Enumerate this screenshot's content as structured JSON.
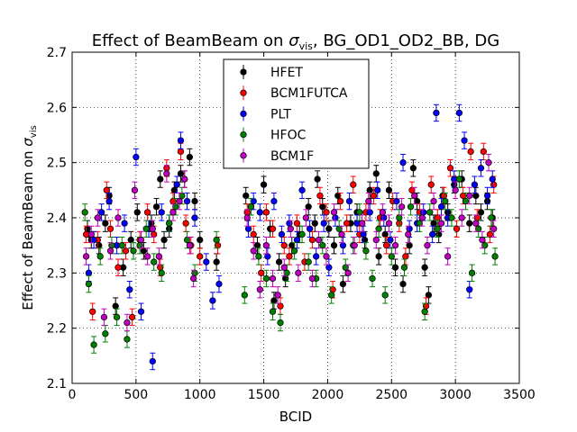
{
  "chart_data": {
    "type": "scatter",
    "title_prefix": "Effect of BeamBeam on ",
    "title_symbol": "σ",
    "title_subscript": "vis",
    "title_suffix": ", BG_OD1_OD2_BB, DG",
    "xlabel": "BCID",
    "ylabel_prefix": "Effect of BeamBeam on ",
    "ylabel_symbol": "σ",
    "ylabel_subscript": "vis",
    "xlim": [
      0,
      3500
    ],
    "ylim": [
      2.1,
      2.7
    ],
    "x_ticks": [
      0,
      500,
      1000,
      1500,
      2000,
      2500,
      3000,
      3500
    ],
    "y_ticks": [
      2.1,
      2.2,
      2.3,
      2.4,
      2.5,
      2.6,
      2.7
    ],
    "x_tick_labels": [
      "0",
      "500",
      "1000",
      "1500",
      "2000",
      "2500",
      "3000",
      "3500"
    ],
    "y_tick_labels": [
      "2.1",
      "2.2",
      "2.3",
      "2.4",
      "2.5",
      "2.6",
      "2.7"
    ],
    "grid": true,
    "legend_position": "top-center",
    "error_bar": 0.015,
    "series": [
      {
        "name": "HFET",
        "color": "#000000",
        "points": [
          [
            120,
            2.38
          ],
          [
            150,
            2.36
          ],
          [
            210,
            2.35
          ],
          [
            260,
            2.39
          ],
          [
            290,
            2.44
          ],
          [
            340,
            2.24
          ],
          [
            400,
            2.31
          ],
          [
            460,
            2.36
          ],
          [
            510,
            2.41
          ],
          [
            560,
            2.34
          ],
          [
            620,
            2.39
          ],
          [
            660,
            2.42
          ],
          [
            690,
            2.47
          ],
          [
            720,
            2.36
          ],
          [
            760,
            2.38
          ],
          [
            800,
            2.45
          ],
          [
            850,
            2.48
          ],
          [
            880,
            2.47
          ],
          [
            920,
            2.51
          ],
          [
            960,
            2.43
          ],
          [
            1000,
            2.36
          ],
          [
            1130,
            2.32
          ],
          [
            1360,
            2.44
          ],
          [
            1400,
            2.42
          ],
          [
            1450,
            2.35
          ],
          [
            1500,
            2.46
          ],
          [
            1550,
            2.38
          ],
          [
            1580,
            2.25
          ],
          [
            1620,
            2.32
          ],
          [
            1670,
            2.29
          ],
          [
            1720,
            2.35
          ],
          [
            1780,
            2.37
          ],
          [
            1850,
            2.42
          ],
          [
            1900,
            2.39
          ],
          [
            1920,
            2.47
          ],
          [
            1960,
            2.42
          ],
          [
            2010,
            2.38
          ],
          [
            2050,
            2.35
          ],
          [
            2080,
            2.44
          ],
          [
            2120,
            2.28
          ],
          [
            2180,
            2.39
          ],
          [
            2230,
            2.41
          ],
          [
            2290,
            2.36
          ],
          [
            2330,
            2.45
          ],
          [
            2380,
            2.48
          ],
          [
            2400,
            2.33
          ],
          [
            2450,
            2.37
          ],
          [
            2480,
            2.45
          ],
          [
            2530,
            2.31
          ],
          [
            2590,
            2.28
          ],
          [
            2640,
            2.35
          ],
          [
            2670,
            2.49
          ],
          [
            2700,
            2.43
          ],
          [
            2760,
            2.31
          ],
          [
            2790,
            2.26
          ],
          [
            2830,
            2.39
          ],
          [
            2870,
            2.37
          ],
          [
            2900,
            2.44
          ],
          [
            2940,
            2.41
          ],
          [
            2990,
            2.46
          ],
          [
            3050,
            2.47
          ],
          [
            3110,
            2.39
          ],
          [
            3160,
            2.44
          ],
          [
            3200,
            2.41
          ],
          [
            3250,
            2.43
          ],
          [
            3290,
            2.4
          ]
        ]
      },
      {
        "name": "BCM1FUTCA",
        "color": "#ff0000",
        "points": [
          [
            110,
            2.37
          ],
          [
            160,
            2.23
          ],
          [
            200,
            2.36
          ],
          [
            270,
            2.45
          ],
          [
            300,
            2.38
          ],
          [
            360,
            2.31
          ],
          [
            420,
            2.34
          ],
          [
            470,
            2.22
          ],
          [
            530,
            2.36
          ],
          [
            590,
            2.41
          ],
          [
            640,
            2.37
          ],
          [
            690,
            2.31
          ],
          [
            740,
            2.49
          ],
          [
            790,
            2.43
          ],
          [
            850,
            2.52
          ],
          [
            890,
            2.39
          ],
          [
            930,
            2.35
          ],
          [
            1000,
            2.33
          ],
          [
            1140,
            2.35
          ],
          [
            1370,
            2.41
          ],
          [
            1420,
            2.37
          ],
          [
            1480,
            2.3
          ],
          [
            1520,
            2.41
          ],
          [
            1570,
            2.38
          ],
          [
            1630,
            2.24
          ],
          [
            1660,
            2.35
          ],
          [
            1700,
            2.33
          ],
          [
            1760,
            2.39
          ],
          [
            1820,
            2.32
          ],
          [
            1880,
            2.36
          ],
          [
            1940,
            2.44
          ],
          [
            1990,
            2.41
          ],
          [
            2040,
            2.27
          ],
          [
            2100,
            2.43
          ],
          [
            2150,
            2.39
          ],
          [
            2200,
            2.46
          ],
          [
            2250,
            2.37
          ],
          [
            2300,
            2.41
          ],
          [
            2360,
            2.44
          ],
          [
            2410,
            2.4
          ],
          [
            2460,
            2.35
          ],
          [
            2510,
            2.43
          ],
          [
            2560,
            2.39
          ],
          [
            2610,
            2.33
          ],
          [
            2660,
            2.45
          ],
          [
            2720,
            2.41
          ],
          [
            2770,
            2.24
          ],
          [
            2810,
            2.46
          ],
          [
            2860,
            2.4
          ],
          [
            2910,
            2.44
          ],
          [
            2960,
            2.49
          ],
          [
            3010,
            2.38
          ],
          [
            3060,
            2.44
          ],
          [
            3120,
            2.52
          ],
          [
            3170,
            2.4
          ],
          [
            3220,
            2.52
          ],
          [
            3270,
            2.37
          ],
          [
            3300,
            2.46
          ]
        ]
      },
      {
        "name": "PLT",
        "color": "#0000ff",
        "points": [
          [
            130,
            2.3
          ],
          [
            170,
            2.36
          ],
          [
            230,
            2.41
          ],
          [
            290,
            2.43
          ],
          [
            350,
            2.35
          ],
          [
            410,
            2.39
          ],
          [
            450,
            2.27
          ],
          [
            500,
            2.51
          ],
          [
            540,
            2.23
          ],
          [
            600,
            2.38
          ],
          [
            630,
            2.14
          ],
          [
            700,
            2.41
          ],
          [
            760,
            2.39
          ],
          [
            820,
            2.46
          ],
          [
            850,
            2.54
          ],
          [
            900,
            2.43
          ],
          [
            960,
            2.4
          ],
          [
            1050,
            2.32
          ],
          [
            1100,
            2.25
          ],
          [
            1150,
            2.28
          ],
          [
            1380,
            2.38
          ],
          [
            1420,
            2.43
          ],
          [
            1470,
            2.41
          ],
          [
            1530,
            2.33
          ],
          [
            1580,
            2.43
          ],
          [
            1640,
            2.37
          ],
          [
            1700,
            2.39
          ],
          [
            1760,
            2.36
          ],
          [
            1800,
            2.45
          ],
          [
            1860,
            2.38
          ],
          [
            1910,
            2.33
          ],
          [
            1970,
            2.39
          ],
          [
            2010,
            2.31
          ],
          [
            2060,
            2.4
          ],
          [
            2120,
            2.35
          ],
          [
            2170,
            2.43
          ],
          [
            2230,
            2.39
          ],
          [
            2280,
            2.37
          ],
          [
            2330,
            2.41
          ],
          [
            2390,
            2.45
          ],
          [
            2440,
            2.4
          ],
          [
            2490,
            2.36
          ],
          [
            2540,
            2.43
          ],
          [
            2590,
            2.5
          ],
          [
            2640,
            2.38
          ],
          [
            2700,
            2.39
          ],
          [
            2750,
            2.41
          ],
          [
            2820,
            2.37
          ],
          [
            2850,
            2.59
          ],
          [
            2890,
            2.42
          ],
          [
            2940,
            2.4
          ],
          [
            2990,
            2.47
          ],
          [
            3030,
            2.59
          ],
          [
            3070,
            2.54
          ],
          [
            3110,
            2.27
          ],
          [
            3150,
            2.46
          ],
          [
            3200,
            2.49
          ],
          [
            3250,
            2.44
          ],
          [
            3290,
            2.47
          ]
        ]
      },
      {
        "name": "HFOC",
        "color": "#008000",
        "points": [
          [
            100,
            2.41
          ],
          [
            130,
            2.28
          ],
          [
            170,
            2.17
          ],
          [
            220,
            2.33
          ],
          [
            260,
            2.19
          ],
          [
            310,
            2.35
          ],
          [
            350,
            2.22
          ],
          [
            390,
            2.35
          ],
          [
            430,
            2.18
          ],
          [
            480,
            2.34
          ],
          [
            530,
            2.35
          ],
          [
            580,
            2.38
          ],
          [
            640,
            2.32
          ],
          [
            700,
            2.3
          ],
          [
            760,
            2.39
          ],
          [
            810,
            2.42
          ],
          [
            860,
            2.44
          ],
          [
            900,
            2.36
          ],
          [
            960,
            2.3
          ],
          [
            1130,
            2.36
          ],
          [
            1350,
            2.26
          ],
          [
            1400,
            2.42
          ],
          [
            1460,
            2.33
          ],
          [
            1520,
            2.29
          ],
          [
            1570,
            2.23
          ],
          [
            1630,
            2.21
          ],
          [
            1680,
            2.3
          ],
          [
            1740,
            2.34
          ],
          [
            1800,
            2.37
          ],
          [
            1850,
            2.32
          ],
          [
            1910,
            2.29
          ],
          [
            1960,
            2.35
          ],
          [
            2030,
            2.26
          ],
          [
            2090,
            2.38
          ],
          [
            2140,
            2.31
          ],
          [
            2200,
            2.35
          ],
          [
            2250,
            2.41
          ],
          [
            2300,
            2.34
          ],
          [
            2350,
            2.29
          ],
          [
            2400,
            2.38
          ],
          [
            2450,
            2.26
          ],
          [
            2500,
            2.33
          ],
          [
            2560,
            2.4
          ],
          [
            2600,
            2.31
          ],
          [
            2650,
            2.42
          ],
          [
            2720,
            2.39
          ],
          [
            2760,
            2.23
          ],
          [
            2800,
            2.41
          ],
          [
            2860,
            2.38
          ],
          [
            2920,
            2.43
          ],
          [
            2970,
            2.4
          ],
          [
            3030,
            2.47
          ],
          [
            3080,
            2.43
          ],
          [
            3130,
            2.3
          ],
          [
            3180,
            2.38
          ],
          [
            3230,
            2.35
          ],
          [
            3280,
            2.4
          ],
          [
            3310,
            2.33
          ]
        ]
      },
      {
        "name": "BCM1F",
        "color": "#bf00bf",
        "points": [
          [
            110,
            2.33
          ],
          [
            150,
            2.37
          ],
          [
            200,
            2.4
          ],
          [
            250,
            2.22
          ],
          [
            300,
            2.34
          ],
          [
            360,
            2.4
          ],
          [
            430,
            2.21
          ],
          [
            490,
            2.45
          ],
          [
            540,
            2.36
          ],
          [
            590,
            2.33
          ],
          [
            630,
            2.38
          ],
          [
            680,
            2.33
          ],
          [
            740,
            2.48
          ],
          [
            790,
            2.41
          ],
          [
            840,
            2.43
          ],
          [
            880,
            2.47
          ],
          [
            920,
            2.35
          ],
          [
            950,
            2.29
          ],
          [
            1370,
            2.4
          ],
          [
            1420,
            2.34
          ],
          [
            1470,
            2.27
          ],
          [
            1520,
            2.35
          ],
          [
            1570,
            2.29
          ],
          [
            1610,
            2.26
          ],
          [
            1660,
            2.31
          ],
          [
            1710,
            2.38
          ],
          [
            1770,
            2.3
          ],
          [
            1830,
            2.4
          ],
          [
            1880,
            2.29
          ],
          [
            1930,
            2.36
          ],
          [
            1990,
            2.33
          ],
          [
            2050,
            2.41
          ],
          [
            2110,
            2.37
          ],
          [
            2160,
            2.3
          ],
          [
            2210,
            2.35
          ],
          [
            2270,
            2.39
          ],
          [
            2320,
            2.43
          ],
          [
            2380,
            2.36
          ],
          [
            2430,
            2.41
          ],
          [
            2480,
            2.39
          ],
          [
            2530,
            2.35
          ],
          [
            2580,
            2.42
          ],
          [
            2630,
            2.37
          ],
          [
            2680,
            2.44
          ],
          [
            2740,
            2.4
          ],
          [
            2780,
            2.35
          ],
          [
            2830,
            2.43
          ],
          [
            2890,
            2.39
          ],
          [
            2940,
            2.33
          ],
          [
            3000,
            2.45
          ],
          [
            3050,
            2.4
          ],
          [
            3110,
            2.44
          ],
          [
            3160,
            2.39
          ],
          [
            3210,
            2.36
          ],
          [
            3260,
            2.5
          ],
          [
            3300,
            2.38
          ]
        ]
      }
    ]
  }
}
